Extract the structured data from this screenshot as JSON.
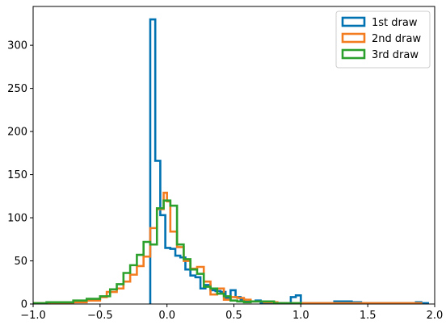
{
  "chart_data": {
    "type": "histogram",
    "title": "",
    "xlabel": "",
    "ylabel": "",
    "xlim": [
      -1.0,
      2.0
    ],
    "ylim": [
      0,
      345
    ],
    "x_ticks": [
      -1.0,
      -0.5,
      0.0,
      0.5,
      1.0,
      1.5,
      2.0
    ],
    "x_tick_labels": [
      "−1.0",
      "−0.5",
      "0.0",
      "0.5",
      "1.0",
      "1.5",
      "2.0"
    ],
    "y_ticks": [
      0,
      50,
      100,
      150,
      200,
      250,
      300
    ],
    "y_tick_labels": [
      "0",
      "50",
      "100",
      "150",
      "200",
      "250",
      "300"
    ],
    "grid": false,
    "legend_position": "top-right",
    "histtype": "step",
    "series": [
      {
        "name": "1st draw",
        "color": "#0072b2",
        "bins": [
          [
            -0.125,
            -0.0875,
            330
          ],
          [
            -0.0875,
            -0.05,
            166
          ],
          [
            -0.05,
            -0.0125,
            103
          ],
          [
            -0.0125,
            0.025,
            65
          ],
          [
            0.025,
            0.0625,
            64
          ],
          [
            0.0625,
            0.1,
            56
          ],
          [
            0.1,
            0.1375,
            54
          ],
          [
            0.1375,
            0.175,
            40
          ],
          [
            0.175,
            0.2125,
            33
          ],
          [
            0.2125,
            0.25,
            31
          ],
          [
            0.25,
            0.2875,
            18
          ],
          [
            0.2875,
            0.325,
            22
          ],
          [
            0.325,
            0.3625,
            16
          ],
          [
            0.3625,
            0.4,
            15
          ],
          [
            0.4,
            0.4375,
            14
          ],
          [
            0.4375,
            0.475,
            7
          ],
          [
            0.475,
            0.5125,
            16
          ],
          [
            0.5125,
            0.55,
            8
          ],
          [
            0.55,
            0.5875,
            5
          ],
          [
            0.5875,
            0.625,
            4
          ],
          [
            0.625,
            0.6625,
            3
          ],
          [
            0.6625,
            0.7,
            4
          ],
          [
            0.7,
            0.7375,
            1
          ],
          [
            0.7375,
            0.775,
            1
          ],
          [
            0.775,
            0.8125,
            1
          ],
          [
            0.8125,
            0.85,
            1
          ],
          [
            0.85,
            0.8875,
            1
          ],
          [
            0.8875,
            0.925,
            0
          ],
          [
            0.925,
            0.9625,
            8
          ],
          [
            0.9625,
            1.0,
            10
          ],
          [
            1.0,
            1.05,
            1
          ],
          [
            1.05,
            1.25,
            1
          ],
          [
            1.25,
            1.3,
            3
          ],
          [
            1.3,
            1.38,
            3
          ],
          [
            1.38,
            1.45,
            2
          ],
          [
            1.45,
            1.55,
            1
          ],
          [
            1.55,
            1.7,
            1
          ],
          [
            1.7,
            1.8,
            1
          ],
          [
            1.8,
            1.86,
            1
          ],
          [
            1.86,
            1.9,
            2
          ],
          [
            1.9,
            1.95,
            1
          ]
        ]
      },
      {
        "name": "2nd draw",
        "color": "#f47c20",
        "bins": [
          [
            -1.0,
            -0.85,
            1
          ],
          [
            -0.85,
            -0.7,
            1
          ],
          [
            -0.7,
            -0.6,
            2
          ],
          [
            -0.6,
            -0.5,
            4
          ],
          [
            -0.5,
            -0.45,
            8
          ],
          [
            -0.45,
            -0.375,
            14
          ],
          [
            -0.375,
            -0.325,
            18
          ],
          [
            -0.325,
            -0.275,
            26
          ],
          [
            -0.275,
            -0.225,
            34
          ],
          [
            -0.225,
            -0.175,
            44
          ],
          [
            -0.175,
            -0.125,
            55
          ],
          [
            -0.125,
            -0.075,
            88
          ],
          [
            -0.075,
            -0.025,
            110
          ],
          [
            -0.025,
            0.0,
            129
          ],
          [
            0.0,
            0.025,
            119
          ],
          [
            0.025,
            0.075,
            84
          ],
          [
            0.075,
            0.125,
            66
          ],
          [
            0.125,
            0.175,
            50
          ],
          [
            0.175,
            0.225,
            41
          ],
          [
            0.225,
            0.275,
            43
          ],
          [
            0.275,
            0.325,
            26
          ],
          [
            0.325,
            0.375,
            11
          ],
          [
            0.375,
            0.425,
            18
          ],
          [
            0.425,
            0.475,
            5
          ],
          [
            0.475,
            0.525,
            8
          ],
          [
            0.525,
            0.575,
            7
          ],
          [
            0.575,
            0.625,
            5
          ],
          [
            0.625,
            0.725,
            3
          ],
          [
            0.725,
            0.825,
            2
          ],
          [
            0.825,
            0.925,
            1
          ],
          [
            0.925,
            1.1,
            1
          ],
          [
            1.1,
            1.3,
            1
          ],
          [
            1.3,
            1.5,
            1
          ],
          [
            1.5,
            1.9,
            1
          ]
        ]
      },
      {
        "name": "3rd draw",
        "color": "#2ca02c",
        "bins": [
          [
            -1.0,
            -0.9,
            1
          ],
          [
            -0.9,
            -0.8,
            2
          ],
          [
            -0.8,
            -0.7,
            2
          ],
          [
            -0.7,
            -0.6,
            4
          ],
          [
            -0.6,
            -0.5,
            6
          ],
          [
            -0.5,
            -0.425,
            9
          ],
          [
            -0.425,
            -0.375,
            17
          ],
          [
            -0.375,
            -0.325,
            23
          ],
          [
            -0.325,
            -0.275,
            36
          ],
          [
            -0.275,
            -0.225,
            45
          ],
          [
            -0.225,
            -0.175,
            57
          ],
          [
            -0.175,
            -0.125,
            72
          ],
          [
            -0.125,
            -0.075,
            69
          ],
          [
            -0.075,
            -0.025,
            111
          ],
          [
            -0.025,
            0.025,
            120
          ],
          [
            0.025,
            0.075,
            114
          ],
          [
            0.075,
            0.125,
            69
          ],
          [
            0.125,
            0.175,
            52
          ],
          [
            0.175,
            0.225,
            40
          ],
          [
            0.225,
            0.275,
            35
          ],
          [
            0.275,
            0.325,
            20
          ],
          [
            0.325,
            0.375,
            18
          ],
          [
            0.375,
            0.425,
            12
          ],
          [
            0.425,
            0.475,
            9
          ],
          [
            0.475,
            0.525,
            4
          ],
          [
            0.525,
            0.575,
            3
          ],
          [
            0.575,
            0.625,
            2
          ],
          [
            0.625,
            0.7,
            3
          ],
          [
            0.7,
            0.8,
            3
          ],
          [
            0.8,
            0.9,
            1
          ],
          [
            0.9,
            1.0,
            1
          ]
        ]
      }
    ]
  }
}
